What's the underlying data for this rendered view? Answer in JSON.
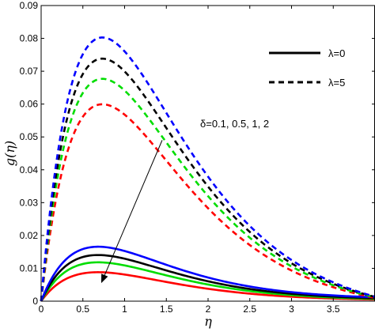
{
  "chart_data": {
    "type": "line",
    "title": "",
    "xlabel": "η",
    "ylabel": "g(η)",
    "xlim": [
      0,
      4
    ],
    "ylim": [
      0,
      0.09
    ],
    "xticks": [
      0,
      0.5,
      1,
      1.5,
      2,
      2.5,
      3,
      3.5
    ],
    "xtick_labels": [
      "0",
      "0.5",
      "1",
      "1.5",
      "2",
      "2.5",
      "3",
      "3.5"
    ],
    "yticks": [
      0,
      0.01,
      0.02,
      0.03,
      0.04,
      0.05,
      0.06,
      0.07,
      0.08,
      0.09
    ],
    "ytick_labels": [
      "0",
      "0.01",
      "0.02",
      "0.03",
      "0.04",
      "0.05",
      "0.06",
      "0.07",
      "0.08",
      "0.09"
    ],
    "grid": false,
    "legend": {
      "placement": "top-right",
      "entries": [
        {
          "label": "λ=0",
          "style": "solid"
        },
        {
          "label": "λ=5",
          "style": "dashed"
        }
      ]
    },
    "annotation": {
      "text": "δ=0.1,  0.5, 1, 2",
      "arrow_from": [
        1.45,
        0.049
      ],
      "arrow_to": [
        0.72,
        0.0055
      ]
    },
    "series": [
      {
        "style": "solid",
        "color": "#ff0000",
        "peak_x": 0.68,
        "peak_y": 0.0088,
        "x_end": 4.0,
        "y_end": 0.0005
      },
      {
        "style": "solid",
        "color": "#00dd00",
        "peak_x": 0.68,
        "peak_y": 0.0118,
        "x_end": 4.0,
        "y_end": 0.0007
      },
      {
        "style": "solid",
        "color": "#000000",
        "peak_x": 0.68,
        "peak_y": 0.014,
        "x_end": 4.0,
        "y_end": 0.0009
      },
      {
        "style": "solid",
        "color": "#0000ff",
        "peak_x": 0.68,
        "peak_y": 0.0165,
        "x_end": 4.0,
        "y_end": 0.0012
      },
      {
        "style": "dashed",
        "color": "#ff0000",
        "peak_x": 0.74,
        "peak_y": 0.0605,
        "x_end": 4.0,
        "y_end": 0.001
      },
      {
        "style": "dashed",
        "color": "#00dd00",
        "peak_x": 0.74,
        "peak_y": 0.0683,
        "x_end": 4.0,
        "y_end": 0.0012
      },
      {
        "style": "dashed",
        "color": "#000000",
        "peak_x": 0.74,
        "peak_y": 0.0745,
        "x_end": 4.0,
        "y_end": 0.0013
      },
      {
        "style": "dashed",
        "color": "#0000ff",
        "peak_x": 0.74,
        "peak_y": 0.081,
        "x_end": 4.0,
        "y_end": 0.0014
      }
    ]
  }
}
